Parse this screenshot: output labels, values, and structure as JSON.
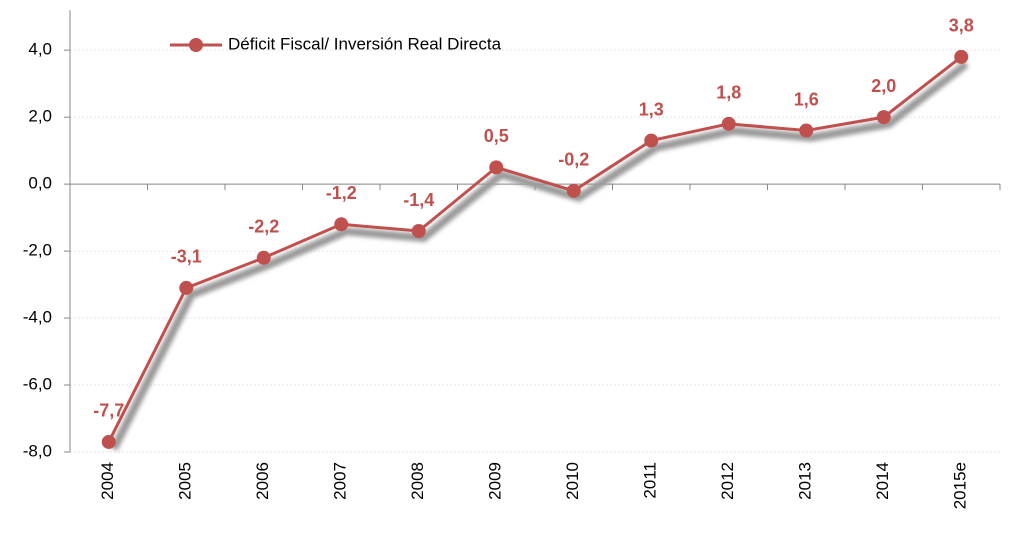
{
  "chart_data": {
    "type": "line",
    "categories": [
      "2004",
      "2005",
      "2006",
      "2007",
      "2008",
      "2009",
      "2010",
      "2011",
      "2012",
      "2013",
      "2014",
      "2015e"
    ],
    "series": [
      {
        "name": "Déficit Fiscal/ Inversión Real Directa",
        "color": "#c0504d",
        "values": [
          -7.7,
          -3.1,
          -2.2,
          -1.2,
          -1.4,
          0.5,
          -0.2,
          1.3,
          1.8,
          1.6,
          2.0,
          3.8
        ],
        "value_labels": [
          "-7,7",
          "-3,1",
          "-2,2",
          "-1,2",
          "-1,4",
          "0,5",
          "-0,2",
          "1,3",
          "1,8",
          "1,6",
          "2,0",
          "3,8"
        ]
      }
    ],
    "ylim": [
      -8,
      5.2
    ],
    "yticks": [
      {
        "value": -8,
        "label": "-8,0"
      },
      {
        "value": -6,
        "label": "-6,0"
      },
      {
        "value": -4,
        "label": "-4,0"
      },
      {
        "value": -2,
        "label": "-2,0"
      },
      {
        "value": 0,
        "label": "0,0"
      },
      {
        "value": 2,
        "label": "2,0"
      },
      {
        "value": 4,
        "label": "4,0"
      }
    ],
    "grid": true,
    "legend": "top-left"
  }
}
